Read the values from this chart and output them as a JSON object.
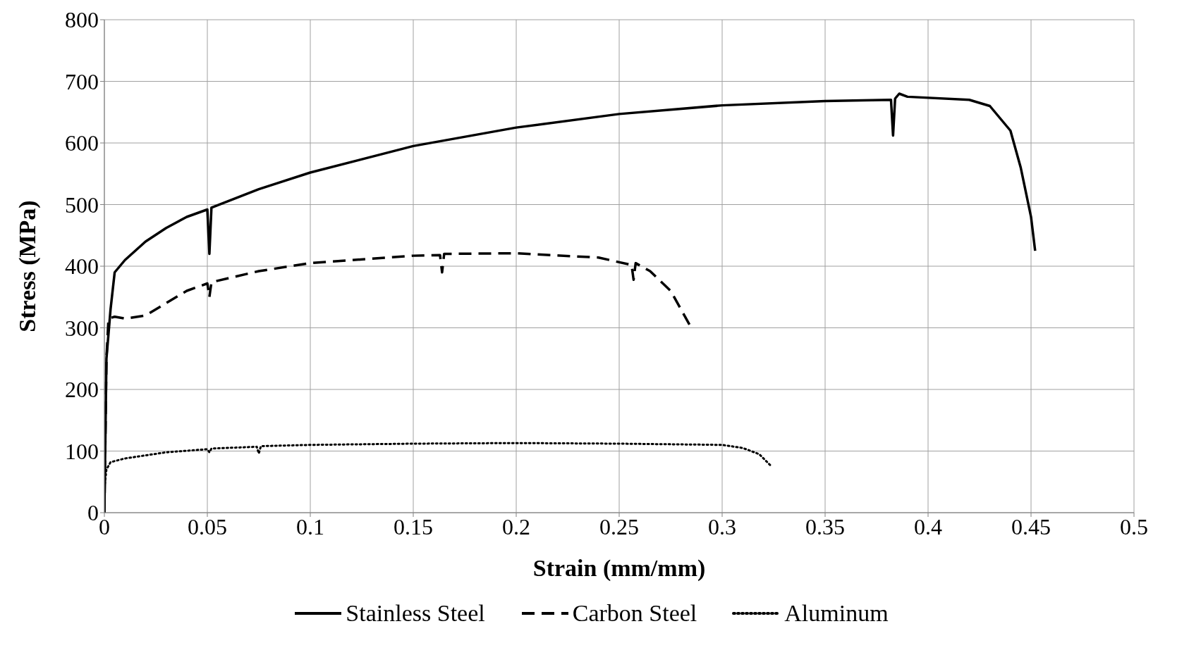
{
  "chart_data": {
    "type": "line",
    "xlabel": "Strain (mm/mm)",
    "ylabel": "Stress (MPa)",
    "xlim": [
      0,
      0.5
    ],
    "xticks": [
      0,
      0.05,
      0.1,
      0.15,
      0.2,
      0.25,
      0.3,
      0.35,
      0.4,
      0.45,
      0.5
    ],
    "ylim": [
      0,
      800
    ],
    "yticks": [
      0,
      100,
      200,
      300,
      400,
      500,
      600,
      700,
      800
    ],
    "grid": true,
    "legend": "bottom",
    "marker": "none",
    "series": [
      {
        "name": "Stainless Steel",
        "color": "#000000",
        "line_style": "solid",
        "x": [
          0,
          0.001,
          0.003,
          0.005,
          0.01,
          0.02,
          0.03,
          0.04,
          0.05,
          0.051,
          0.052,
          0.075,
          0.1,
          0.15,
          0.2,
          0.25,
          0.3,
          0.35,
          0.382,
          0.383,
          0.384,
          0.386,
          0.39,
          0.42,
          0.43,
          0.44,
          0.445,
          0.45,
          0.452
        ],
        "values": [
          0,
          250,
          330,
          390,
          410,
          440,
          462,
          480,
          492,
          420,
          495,
          525,
          552,
          595,
          625,
          647,
          661,
          668,
          670,
          612,
          672,
          680,
          675,
          670,
          660,
          620,
          560,
          480,
          425
        ]
      },
      {
        "name": "Carbon Steel",
        "color": "#000000",
        "line_style": "dashed",
        "x": [
          0,
          0.001,
          0.002,
          0.005,
          0.01,
          0.02,
          0.03,
          0.04,
          0.05,
          0.051,
          0.052,
          0.075,
          0.1,
          0.15,
          0.163,
          0.164,
          0.165,
          0.2,
          0.24,
          0.256,
          0.257,
          0.258,
          0.265,
          0.275,
          0.285
        ],
        "values": [
          0,
          250,
          315,
          318,
          315,
          320,
          340,
          360,
          372,
          350,
          374,
          392,
          405,
          417,
          418,
          390,
          420,
          421,
          414,
          402,
          378,
          405,
          392,
          360,
          300
        ]
      },
      {
        "name": "Aluminum",
        "color": "#000000",
        "line_style": "dotted",
        "x": [
          0,
          0.001,
          0.003,
          0.01,
          0.03,
          0.05,
          0.051,
          0.052,
          0.074,
          0.075,
          0.076,
          0.1,
          0.15,
          0.2,
          0.25,
          0.3,
          0.31,
          0.318,
          0.324
        ],
        "values": [
          40,
          70,
          82,
          88,
          98,
          103,
          98,
          104,
          107,
          96,
          108,
          110,
          112,
          113,
          112,
          110,
          105,
          95,
          75
        ]
      }
    ]
  }
}
